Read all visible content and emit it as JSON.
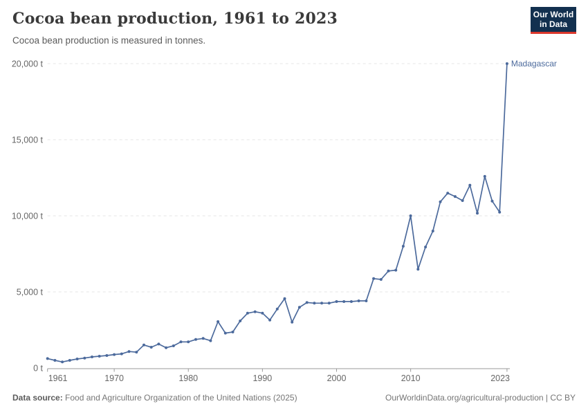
{
  "header": {
    "title": "Cocoa bean production, 1961 to 2023",
    "subtitle": "Cocoa bean production is measured in tonnes."
  },
  "logo": {
    "line1": "Our World",
    "line2": "in Data"
  },
  "chart_data": {
    "type": "line",
    "title": "Cocoa bean production, 1961 to 2023",
    "ylabel": "tonnes",
    "unit": " t",
    "xlim": [
      1961,
      2023
    ],
    "ylim": [
      0,
      20000
    ],
    "x_ticks": [
      1961,
      1970,
      1980,
      1990,
      2000,
      2010,
      2023
    ],
    "y_ticks": [
      0,
      5000,
      10000,
      15000,
      20000
    ],
    "grid": "horizontal-dashed",
    "legend_position": "end-of-line-label",
    "series": [
      {
        "name": "Madagascar",
        "color": "#4c6a9c",
        "x": [
          1961,
          1962,
          1963,
          1964,
          1965,
          1966,
          1967,
          1968,
          1969,
          1970,
          1971,
          1972,
          1973,
          1974,
          1975,
          1976,
          1977,
          1978,
          1979,
          1980,
          1981,
          1982,
          1983,
          1984,
          1985,
          1986,
          1987,
          1988,
          1989,
          1990,
          1991,
          1992,
          1993,
          1994,
          1995,
          1996,
          1997,
          1998,
          1999,
          2000,
          2001,
          2002,
          2003,
          2004,
          2005,
          2006,
          2007,
          2008,
          2009,
          2010,
          2011,
          2012,
          2013,
          2014,
          2015,
          2016,
          2017,
          2018,
          2019,
          2020,
          2021,
          2022,
          2023
        ],
        "values": [
          620,
          500,
          395,
          500,
          590,
          650,
          725,
          775,
          820,
          880,
          925,
          1080,
          1040,
          1510,
          1365,
          1575,
          1330,
          1455,
          1715,
          1715,
          1875,
          1940,
          1790,
          3045,
          2290,
          2365,
          3090,
          3600,
          3695,
          3605,
          3150,
          3875,
          4560,
          3015,
          3985,
          4300,
          4260,
          4260,
          4260,
          4365,
          4365,
          4365,
          4410,
          4410,
          5875,
          5820,
          6375,
          6425,
          8000,
          10000,
          6490,
          7950,
          9000,
          10920,
          11490,
          11270,
          11000,
          12010,
          10170,
          12590,
          10970,
          10240,
          20000
        ]
      }
    ],
    "colors": {
      "line": "#4c6a9c",
      "grid": "#e6e6e6",
      "axis": "#9a9a9a",
      "tick_text": "#666666"
    }
  },
  "footer": {
    "source_label": "Data source:",
    "source_text": " Food and Agriculture Organization of the United Nations (2025)",
    "credit": "OurWorldinData.org/agricultural-production | CC BY"
  }
}
